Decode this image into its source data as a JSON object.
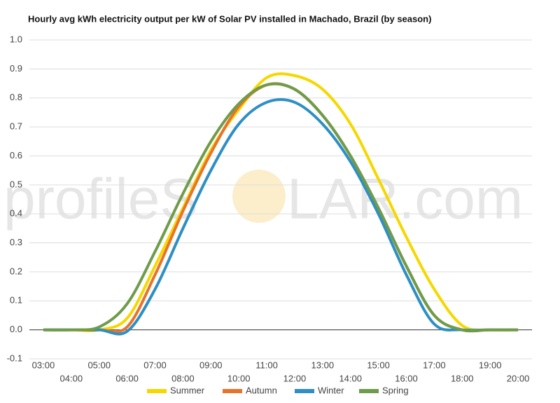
{
  "chart_data": {
    "type": "line",
    "title": "Hourly avg kWh electricity output per kW of Solar PV installed in Machado, Brazil (by season)",
    "watermark": [
      "profileS",
      "LAR.com"
    ],
    "categories": [
      "03:00",
      "04:00",
      "05:00",
      "06:00",
      "07:00",
      "08:00",
      "09:00",
      "10:00",
      "11:00",
      "12:00",
      "13:00",
      "14:00",
      "15:00",
      "16:00",
      "17:00",
      "18:00",
      "19:00",
      "20:00"
    ],
    "series": [
      {
        "name": "Summer",
        "color": "#f5d800",
        "values": [
          0,
          0,
          0,
          0.04,
          0.22,
          0.42,
          0.62,
          0.76,
          0.87,
          0.877,
          0.83,
          0.71,
          0.52,
          0.32,
          0.14,
          0.015,
          0,
          0
        ]
      },
      {
        "name": "Autumn",
        "color": "#e8732b",
        "values": [
          0,
          0,
          0,
          0.01,
          0.19,
          0.41,
          0.61,
          0.77,
          0.845,
          0.83,
          0.74,
          0.6,
          0.42,
          0.22,
          0.05,
          0,
          0,
          0
        ]
      },
      {
        "name": "Winter",
        "color": "#2e8fc4",
        "values": [
          0,
          0,
          0,
          -0.005,
          0.14,
          0.35,
          0.55,
          0.71,
          0.785,
          0.785,
          0.71,
          0.58,
          0.4,
          0.19,
          0.02,
          0,
          0,
          0
        ]
      },
      {
        "name": "Spring",
        "color": "#6e9c4a",
        "values": [
          0,
          0,
          0.01,
          0.09,
          0.27,
          0.47,
          0.65,
          0.78,
          0.845,
          0.83,
          0.74,
          0.6,
          0.42,
          0.22,
          0.05,
          0,
          0,
          0
        ]
      }
    ],
    "ylim": [
      -0.1,
      1.0
    ],
    "yticks": [
      -0.1,
      {
        "value": 0,
        "label": "0.0"
      },
      0.1,
      0.2,
      0.3,
      0.4,
      0.5,
      0.6,
      0.7,
      0.8,
      0.9,
      {
        "value": 1,
        "label": "1.0"
      }
    ],
    "grid": true
  }
}
